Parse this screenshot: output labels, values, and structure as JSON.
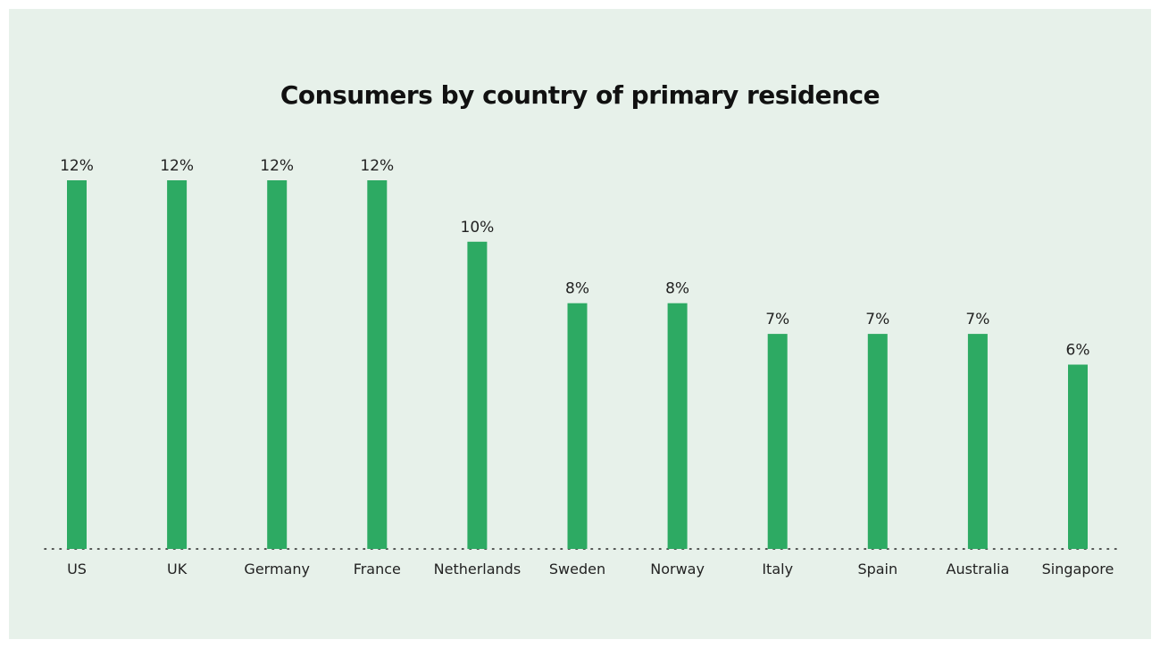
{
  "chart_data": {
    "type": "bar",
    "title": "Consumers by country of primary residence",
    "categories": [
      "US",
      "UK",
      "Germany",
      "France",
      "Netherlands",
      "Sweden",
      "Norway",
      "Italy",
      "Spain",
      "Australia",
      "Singapore"
    ],
    "values": [
      12,
      12,
      12,
      12,
      10,
      8,
      8,
      7,
      7,
      7,
      6
    ],
    "value_labels": [
      "12%",
      "12%",
      "12%",
      "12%",
      "10%",
      "8%",
      "8%",
      "7%",
      "7%",
      "7%",
      "6%"
    ],
    "unit": "%",
    "xlabel": "",
    "ylabel": "",
    "ylim": [
      0,
      12
    ],
    "grid": false,
    "bar_color": "#2daa63",
    "background_color": "#e7f1ea"
  }
}
